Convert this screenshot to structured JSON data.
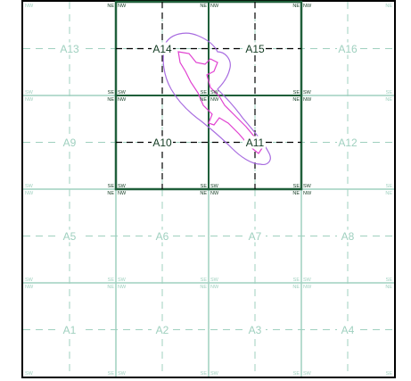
{
  "colors": {
    "faint_line": "#9fd0bf",
    "dark_line": "#1f5f3a",
    "faint_label": "#9fd0bf",
    "dark_label": "#123b22",
    "outline_outer": "#a86ce0",
    "outline_inner": "#e040d0"
  },
  "cells": [
    {
      "id": "A13",
      "label": "A13",
      "highlight": false
    },
    {
      "id": "A14",
      "label": "A14",
      "highlight": true
    },
    {
      "id": "A15",
      "label": "A15",
      "highlight": true
    },
    {
      "id": "A16",
      "label": "A16",
      "highlight": false
    },
    {
      "id": "A9",
      "label": "A9",
      "highlight": false
    },
    {
      "id": "A10",
      "label": "A10",
      "highlight": true
    },
    {
      "id": "A11",
      "label": "A11",
      "highlight": true
    },
    {
      "id": "A12",
      "label": "A12",
      "highlight": false
    },
    {
      "id": "A5",
      "label": "A5",
      "highlight": false
    },
    {
      "id": "A6",
      "label": "A6",
      "highlight": false
    },
    {
      "id": "A7",
      "label": "A7",
      "highlight": false
    },
    {
      "id": "A8",
      "label": "A8",
      "highlight": false
    },
    {
      "id": "A1",
      "label": "A1",
      "highlight": false
    },
    {
      "id": "A2",
      "label": "A2",
      "highlight": false
    },
    {
      "id": "A3",
      "label": "A3",
      "highlight": false
    },
    {
      "id": "A4",
      "label": "A4",
      "highlight": false
    }
  ],
  "corner_labels": [
    "NW",
    "NE",
    "SW",
    "SE"
  ]
}
